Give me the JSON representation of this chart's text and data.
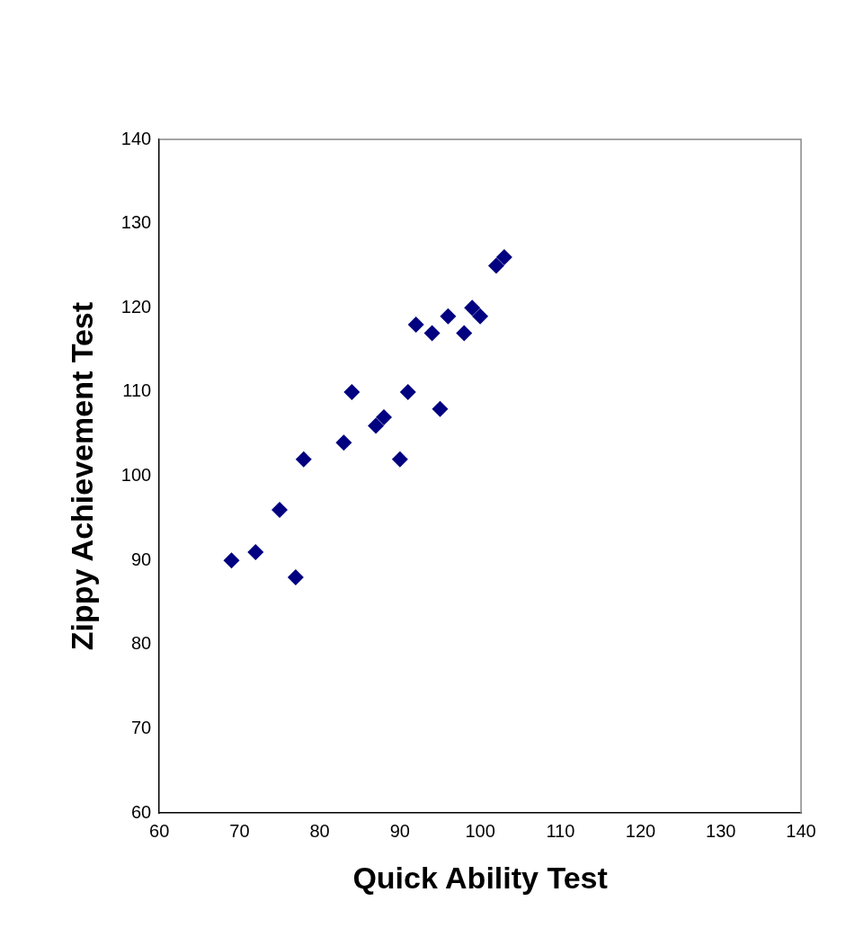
{
  "chart_data": {
    "type": "scatter",
    "xlabel": "Quick Ability Test",
    "ylabel": "Zippy Achievement Test",
    "x": [
      69,
      72,
      75,
      77,
      78,
      83,
      84,
      87,
      88,
      90,
      91,
      92,
      94,
      95,
      96,
      98,
      99,
      100,
      102,
      103
    ],
    "values": [
      90,
      91,
      96,
      88,
      102,
      104,
      110,
      106,
      107,
      102,
      110,
      118,
      117,
      108,
      119,
      117,
      120,
      119,
      125,
      126
    ],
    "color": "#000080",
    "marker": "diamond",
    "grid": false,
    "legend": false,
    "xlim": [
      60,
      140
    ],
    "xticks": [
      60,
      70,
      80,
      90,
      100,
      110,
      120,
      130,
      140
    ],
    "ylim": [
      60,
      140
    ],
    "yticks": [
      60,
      70,
      80,
      90,
      100,
      110,
      120,
      130,
      140
    ]
  }
}
